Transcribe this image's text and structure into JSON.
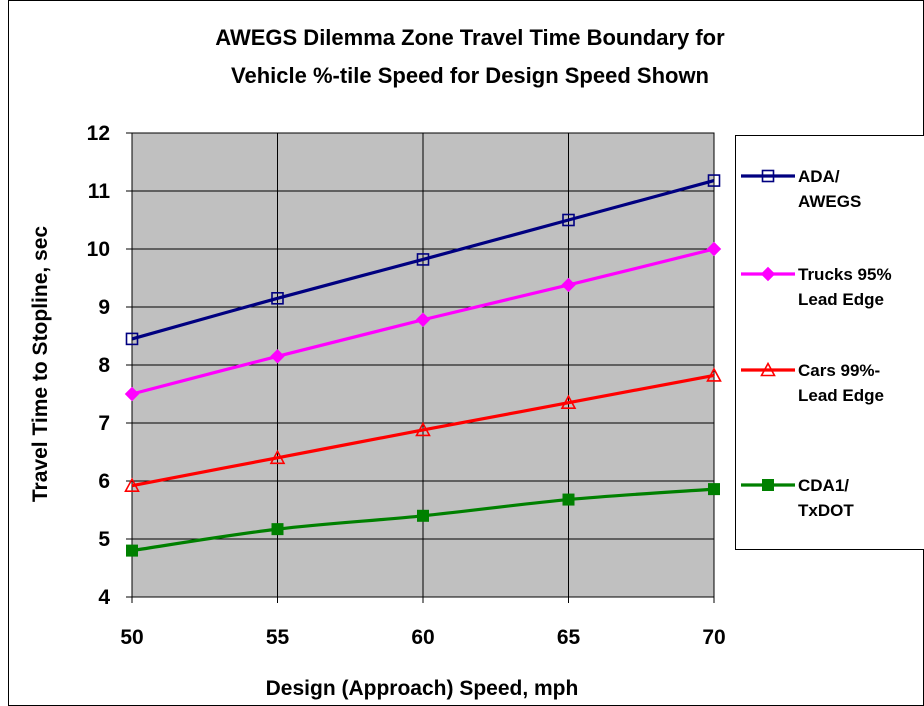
{
  "chart_data": {
    "type": "line",
    "title_lines": [
      "AWEGS Dilemma Zone Travel Time Boundary for",
      "Vehicle %-tile Speed for Design Speed Shown"
    ],
    "xlabel": "Design (Approach) Speed, mph",
    "ylabel": "Travel Time to Stopline, sec",
    "x": [
      50,
      55,
      60,
      65,
      70
    ],
    "x_ticks": [
      "50",
      "55",
      "60",
      "65",
      "70"
    ],
    "y_ticks": [
      "4",
      "5",
      "6",
      "7",
      "8",
      "9",
      "10",
      "11",
      "12"
    ],
    "xlim": [
      50,
      70
    ],
    "ylim": [
      4,
      12
    ],
    "grid": true,
    "plot_background": "#c0c0c0",
    "legend_position": "right",
    "series": [
      {
        "name_lines": [
          "ADA/",
          "AWEGS"
        ],
        "values": [
          8.45,
          9.15,
          9.82,
          10.5,
          11.18
        ],
        "color": "#000080",
        "marker": "square-open"
      },
      {
        "name_lines": [
          "Trucks 95%",
          "Lead Edge"
        ],
        "values": [
          7.5,
          8.15,
          8.78,
          9.38,
          10.0
        ],
        "color": "#ff00ff",
        "marker": "diamond-filled"
      },
      {
        "name_lines": [
          "Cars 99%-",
          "Lead Edge"
        ],
        "values": [
          5.92,
          6.4,
          6.88,
          7.35,
          7.82
        ],
        "color": "#ff0000",
        "marker": "triangle-open"
      },
      {
        "name_lines": [
          "CDA1/",
          "TxDOT"
        ],
        "values": [
          4.8,
          5.17,
          5.4,
          5.68,
          5.86
        ],
        "color": "#008000",
        "marker": "square-filled"
      }
    ]
  }
}
